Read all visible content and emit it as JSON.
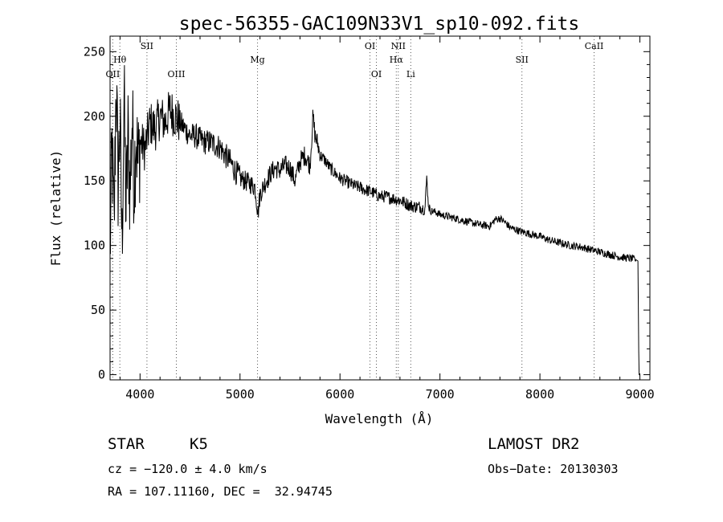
{
  "chart_data": {
    "type": "line",
    "title": "spec-56355-GAC109N33V1_sp10-092.fits",
    "xlabel": "Wavelength (Å)",
    "ylabel": "Flux (relative)",
    "xlim": [
      3700,
      9100
    ],
    "ylim": [
      -4,
      262
    ],
    "xticks": [
      4000,
      5000,
      6000,
      7000,
      8000,
      9000
    ],
    "yticks": [
      0,
      50,
      100,
      150,
      200,
      250
    ],
    "grid": false,
    "line_color": "#000000",
    "series": [
      {
        "x": [
          3700,
          3720,
          3740,
          3760,
          3780,
          3800,
          3820,
          3840,
          3860,
          3880,
          3900,
          3920,
          3940,
          3960,
          3980,
          4000,
          4050,
          4100,
          4150,
          4200,
          4250,
          4300,
          4350,
          4400,
          4450,
          4500,
          4550,
          4600,
          4650,
          4700,
          4750,
          4800,
          4850,
          4900,
          4950,
          5000,
          5050,
          5100,
          5150,
          5180,
          5200,
          5250,
          5300,
          5350,
          5400,
          5450,
          5500,
          5550,
          5600,
          5650,
          5700,
          5730,
          5750,
          5780,
          5800,
          5850,
          5900,
          5950,
          6000,
          6050,
          6100,
          6150,
          6200,
          6250,
          6300,
          6350,
          6400,
          6450,
          6500,
          6550,
          6600,
          6650,
          6700,
          6750,
          6800,
          6850,
          6870,
          6880,
          6900,
          6950,
          7000,
          7100,
          7200,
          7300,
          7400,
          7500,
          7550,
          7600,
          7650,
          7700,
          7800,
          7900,
          8000,
          8100,
          8200,
          8300,
          8400,
          8500,
          8600,
          8700,
          8800,
          8900,
          8960,
          8980,
          8985,
          8990,
          9000
        ],
        "values": [
          95,
          175,
          110,
          230,
          150,
          195,
          100,
          215,
          125,
          185,
          140,
          200,
          150,
          190,
          160,
          180,
          175,
          195,
          190,
          200,
          195,
          205,
          200,
          195,
          190,
          185,
          185,
          182,
          180,
          180,
          178,
          176,
          170,
          165,
          158,
          152,
          150,
          148,
          145,
          125,
          140,
          148,
          155,
          160,
          158,
          162,
          160,
          150,
          165,
          170,
          162,
          200,
          185,
          178,
          170,
          166,
          160,
          156,
          152,
          150,
          148,
          146,
          145,
          143,
          142,
          140,
          138,
          138,
          137,
          136,
          135,
          133,
          131,
          130,
          130,
          128,
          155,
          135,
          127,
          126,
          124,
          122,
          120,
          118,
          116,
          115,
          120,
          121,
          118,
          114,
          111,
          109,
          107,
          104,
          102,
          100,
          99,
          97,
          95,
          93,
          91,
          90,
          89,
          88,
          45,
          0,
          0
        ]
      }
    ],
    "lines": [
      {
        "label": "Hθ",
        "x": 3798,
        "tier": 1
      },
      {
        "label": "OII",
        "x": 3727,
        "tier": 2
      },
      {
        "label": "SII",
        "x": 4069,
        "tier": 0
      },
      {
        "label": "OIII",
        "x": 4363,
        "tier": 2
      },
      {
        "label": "Mg",
        "x": 5175,
        "tier": 1
      },
      {
        "label": "OI",
        "x": 6300,
        "tier": 0
      },
      {
        "label": "OI",
        "x": 6364,
        "tier": 2
      },
      {
        "label": "NII",
        "x": 6583,
        "tier": 0
      },
      {
        "label": "Hα",
        "x": 6563,
        "tier": 1
      },
      {
        "label": "Li",
        "x": 6708,
        "tier": 2
      },
      {
        "label": "SII",
        "x": 7820,
        "tier": 1
      },
      {
        "label": "CaII",
        "x": 8542,
        "tier": 0
      }
    ]
  },
  "info": {
    "object_class": "STAR",
    "subclass": "K5",
    "survey": "LAMOST DR2",
    "cz": "cz = −120.0 ± 4.0 km/s",
    "obs_date": "Obs−Date: 20130303",
    "radec": "RA = 107.11160, DEC =  32.94745"
  }
}
